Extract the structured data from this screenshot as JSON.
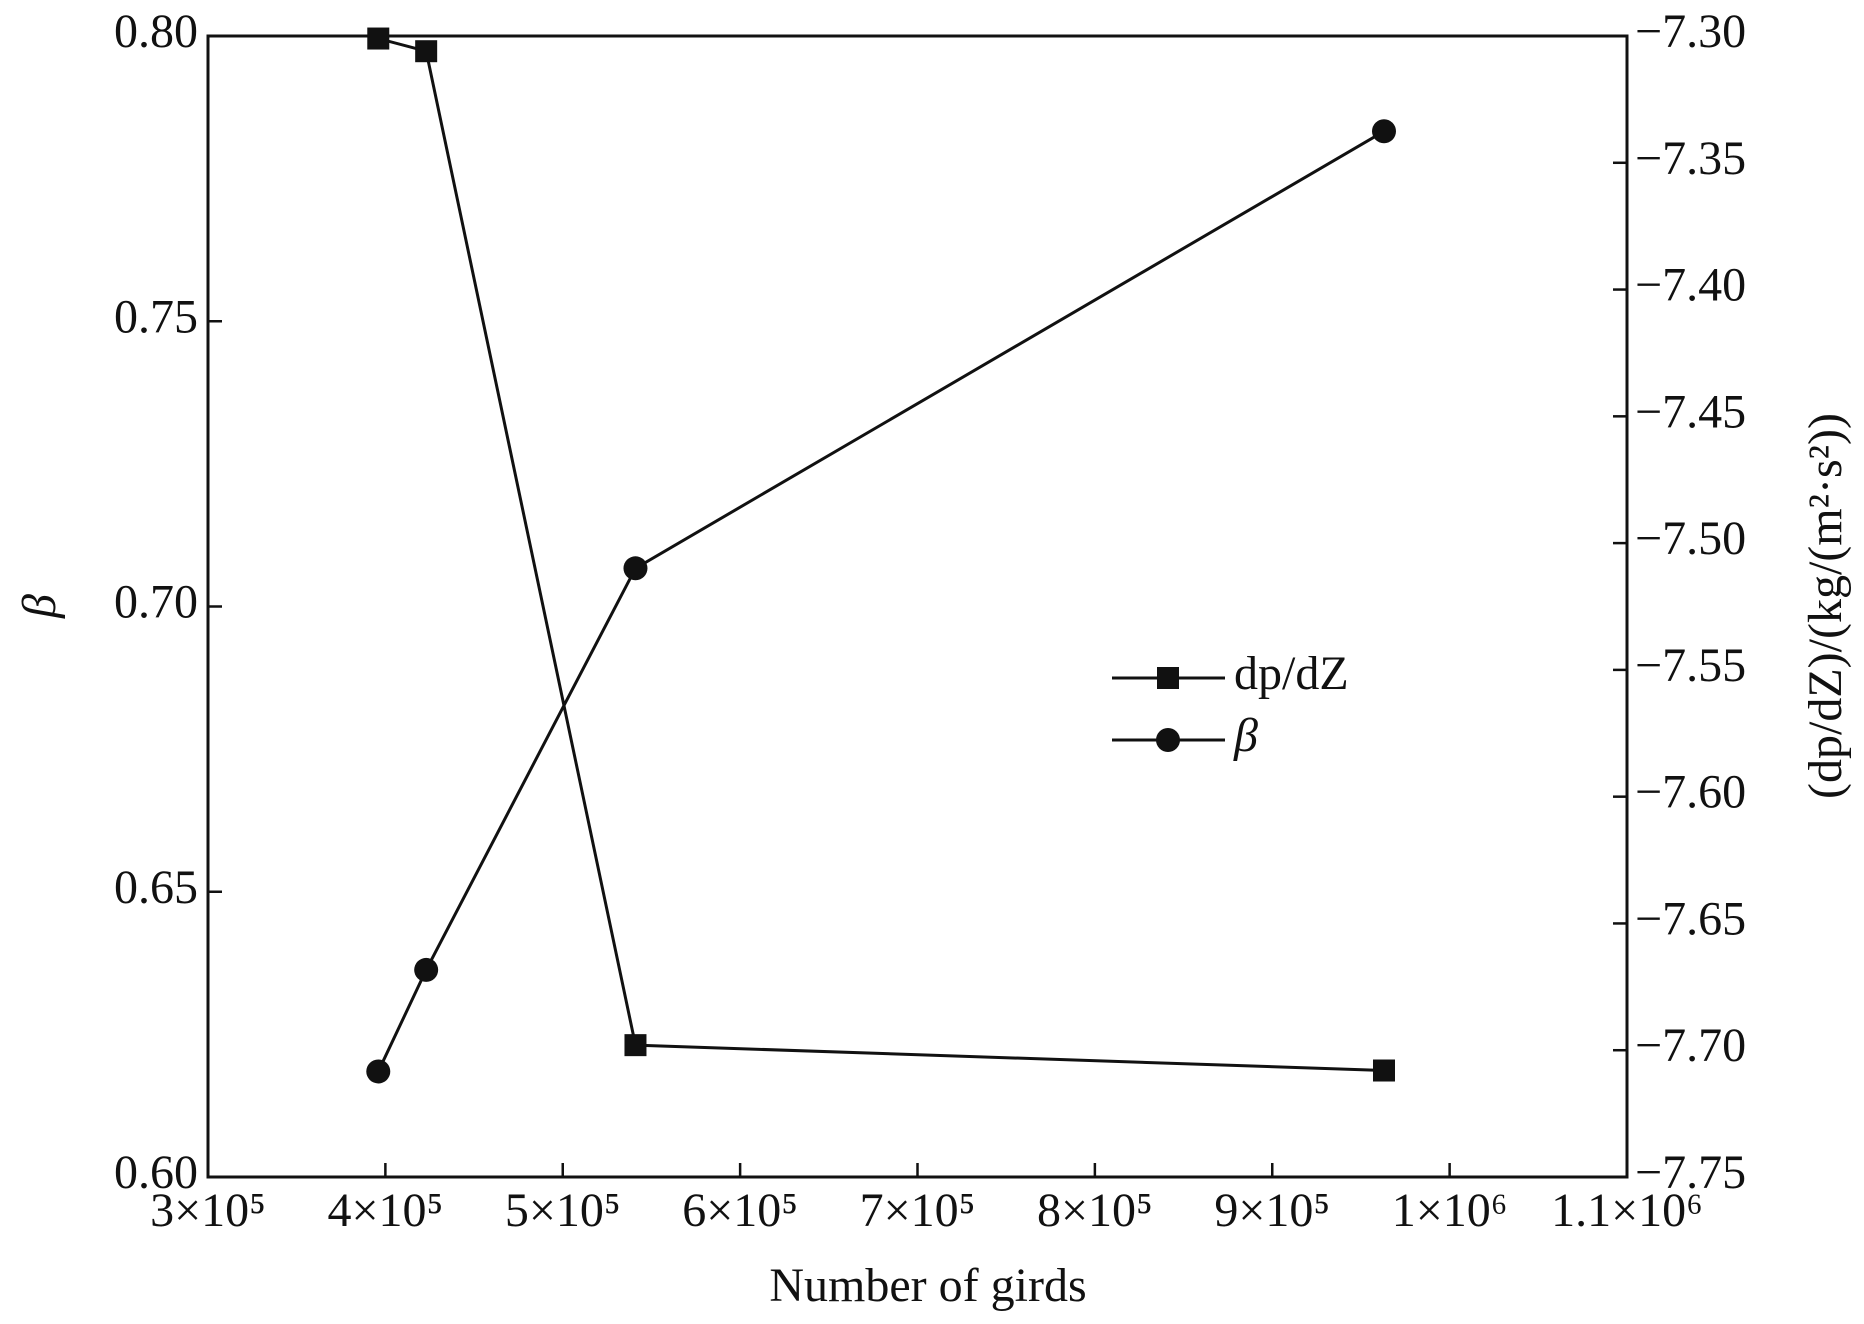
{
  "chart_data": {
    "type": "line",
    "xlabel": "Number of girds",
    "ylabel": "β",
    "y2label": "(dp/dZ)/(kg/(m²·s²))",
    "x": [
      396000,
      423000,
      541000,
      963000
    ],
    "series": [
      {
        "name": "dp/dZ",
        "color": "#111111",
        "marker": "square",
        "axis": "y2",
        "values": [
          -7.301,
          -7.306,
          -7.698,
          -7.708
        ]
      },
      {
        "name": "β",
        "color": "#111111",
        "marker": "circle",
        "values": [
          0.6185,
          0.6363,
          0.7067,
          0.7833
        ]
      }
    ],
    "xlim": [
      300000,
      1100000
    ],
    "xticks": [
      {
        "value": 300000,
        "label": "3×10⁵"
      },
      {
        "value": 400000,
        "label": "4×10⁵"
      },
      {
        "value": 500000,
        "label": "5×10⁵"
      },
      {
        "value": 600000,
        "label": "6×10⁵"
      },
      {
        "value": 700000,
        "label": "7×10⁵"
      },
      {
        "value": 800000,
        "label": "8×10⁵"
      },
      {
        "value": 900000,
        "label": "9×10⁵"
      },
      {
        "value": 1000000,
        "label": "1×10⁶"
      },
      {
        "value": 1100000,
        "label": "1.1×10⁶"
      }
    ],
    "ylim": [
      0.6,
      0.8
    ],
    "yticks": [
      {
        "value": 0.6,
        "label": "0.60"
      },
      {
        "value": 0.65,
        "label": "0.65"
      },
      {
        "value": 0.7,
        "label": "0.70"
      },
      {
        "value": 0.75,
        "label": "0.75"
      },
      {
        "value": 0.8,
        "label": "0.80"
      }
    ],
    "y2lim": [
      -7.75,
      -7.3
    ],
    "y2ticks": [
      {
        "value": -7.75,
        "label": "−7.75"
      },
      {
        "value": -7.7,
        "label": "−7.70"
      },
      {
        "value": -7.65,
        "label": "−7.65"
      },
      {
        "value": -7.6,
        "label": "−7.60"
      },
      {
        "value": -7.55,
        "label": "−7.55"
      },
      {
        "value": -7.5,
        "label": "−7.50"
      },
      {
        "value": -7.45,
        "label": "−7.45"
      },
      {
        "value": -7.4,
        "label": "−7.40"
      },
      {
        "value": -7.35,
        "label": "−7.35"
      },
      {
        "value": -7.3,
        "label": "−7.30"
      }
    ]
  }
}
